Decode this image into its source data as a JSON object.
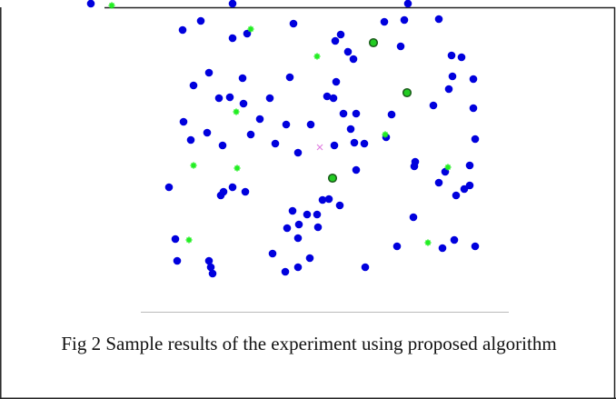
{
  "chart_data": {
    "type": "scatter",
    "xlim": [
      0,
      450
    ],
    "ylim": [
      0,
      310
    ],
    "series": [
      {
        "color": "#0000dd",
        "marker": "circle",
        "x": [
          111,
          131,
          166,
          182,
          233,
          279,
          285,
          293,
          299,
          333,
          355,
          393,
          351,
          407,
          418,
          408,
          404,
          431,
          140,
          123,
          177,
          151,
          163,
          178,
          207,
          229,
          270,
          277,
          280,
          288,
          302,
          341,
          387,
          431,
          112,
          120,
          138,
          155,
          186,
          196,
          213,
          225,
          238,
          252,
          278,
          296,
          300,
          311,
          335,
          367,
          366,
          400,
          427,
          433,
          96,
          153,
          156,
          166,
          180,
          232,
          239,
          248,
          259,
          265,
          272,
          284,
          302,
          260,
          226,
          238,
          210,
          224,
          238,
          251,
          312,
          347,
          365,
          397,
          410,
          433,
          393,
          412,
          421,
          427,
          103,
          105,
          140,
          142,
          144,
          10,
          166,
          359
        ],
        "y": [
          277,
          287,
          268,
          273,
          284,
          265,
          272,
          253,
          245,
          286,
          288,
          289,
          259,
          249,
          247,
          226,
          212,
          223,
          230,
          216,
          224,
          202,
          203,
          196,
          202,
          225,
          204,
          202,
          220,
          185,
          185,
          184,
          194,
          191,
          176,
          156,
          164,
          150,
          162,
          179,
          152,
          173,
          142,
          173,
          150,
          168,
          153,
          152,
          159,
          132,
          127,
          121,
          128,
          157,
          104,
          95,
          99,
          104,
          99,
          78,
          63,
          74,
          74,
          90,
          91,
          84,
          123,
          60,
          59,
          48,
          31,
          11,
          16,
          26,
          16,
          39,
          71,
          37,
          46,
          39,
          109,
          95,
          102,
          106,
          47,
          23,
          23,
          16,
          9,
          306,
          306,
          306
        ]
      },
      {
        "color": "#22ee22",
        "marker": "star",
        "x": [
          186,
          259,
          170,
          123,
          171,
          334,
          403,
          118,
          381,
          33
        ],
        "y": [
          278,
          248,
          187,
          128,
          125,
          162,
          126,
          46,
          43,
          304
        ]
      },
      {
        "color": "#22cc22",
        "edge": "#1a5a1a",
        "marker": "circle-edged",
        "x": [
          321,
          358,
          276
        ],
        "y": [
          263,
          208,
          114
        ]
      },
      {
        "color": "#e080e0",
        "marker": "x",
        "x": [
          262
        ],
        "y": [
          148
        ]
      }
    ]
  },
  "caption": "Fig 2 Sample results of the experiment using proposed algorithm"
}
